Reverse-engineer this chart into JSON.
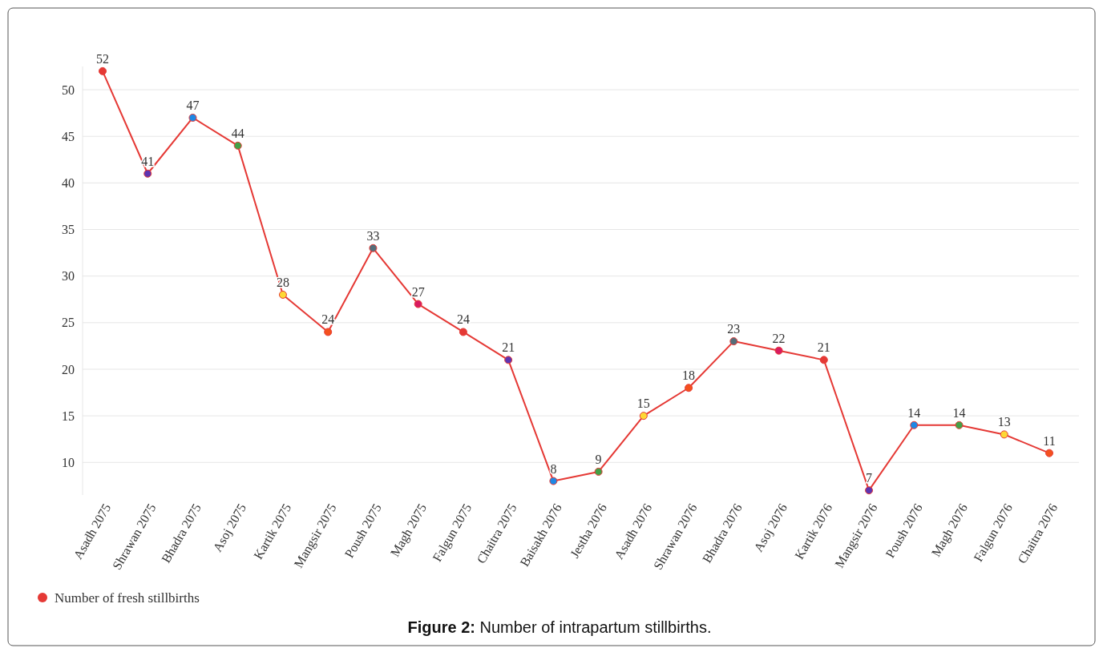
{
  "chart_data": {
    "type": "line",
    "title": "Figure 2: Number of intrapartum stillbirths.",
    "categories": [
      "Asadh 2075",
      "Shrawan 2075",
      "Bhadra 2075",
      "Asoj 2075",
      "Kartik 2075",
      "Mangsir 2075",
      "Poush 2075",
      "Magh 2075",
      "Falgun 2075",
      "Chaitra 2075",
      "Baisakh 2076",
      "Jestha 2076",
      "Asadh 2076",
      "Shrawan 2076",
      "Bhadra 2076",
      "Asoj 2076",
      "Kartik 2076",
      "Mangsir 2076",
      "Poush 2076",
      "Magh 2076",
      "Falgun 2076",
      "Chaitra 2076"
    ],
    "series": [
      {
        "name": "Number of fresh stillbirths",
        "color": "#e53935",
        "values": [
          52,
          41,
          47,
          44,
          28,
          24,
          33,
          27,
          24,
          21,
          8,
          9,
          15,
          18,
          23,
          22,
          21,
          7,
          14,
          14,
          13,
          11
        ],
        "colors": [
          "#e53935",
          "#5e35b1",
          "#1e88e5",
          "#43a047",
          "#fdd835",
          "#f4511e",
          "#546e7a",
          "#d81b60",
          "#e53935",
          "#5e35b1",
          "#1e88e5",
          "#43a047",
          "#fdd835",
          "#f4511e",
          "#546e7a",
          "#d81b60",
          "#e53935",
          "#5e35b1",
          "#1e88e5",
          "#43a047",
          "#fdd835",
          "#f4511e"
        ]
      }
    ],
    "ylim": [
      6.5,
      52.5
    ],
    "yticks": [
      10,
      15,
      20,
      25,
      30,
      35,
      40,
      45,
      50
    ],
    "grid": "y",
    "legend": "bottom left",
    "marker": "circle",
    "line_style": "solid",
    "data_labels": true
  }
}
